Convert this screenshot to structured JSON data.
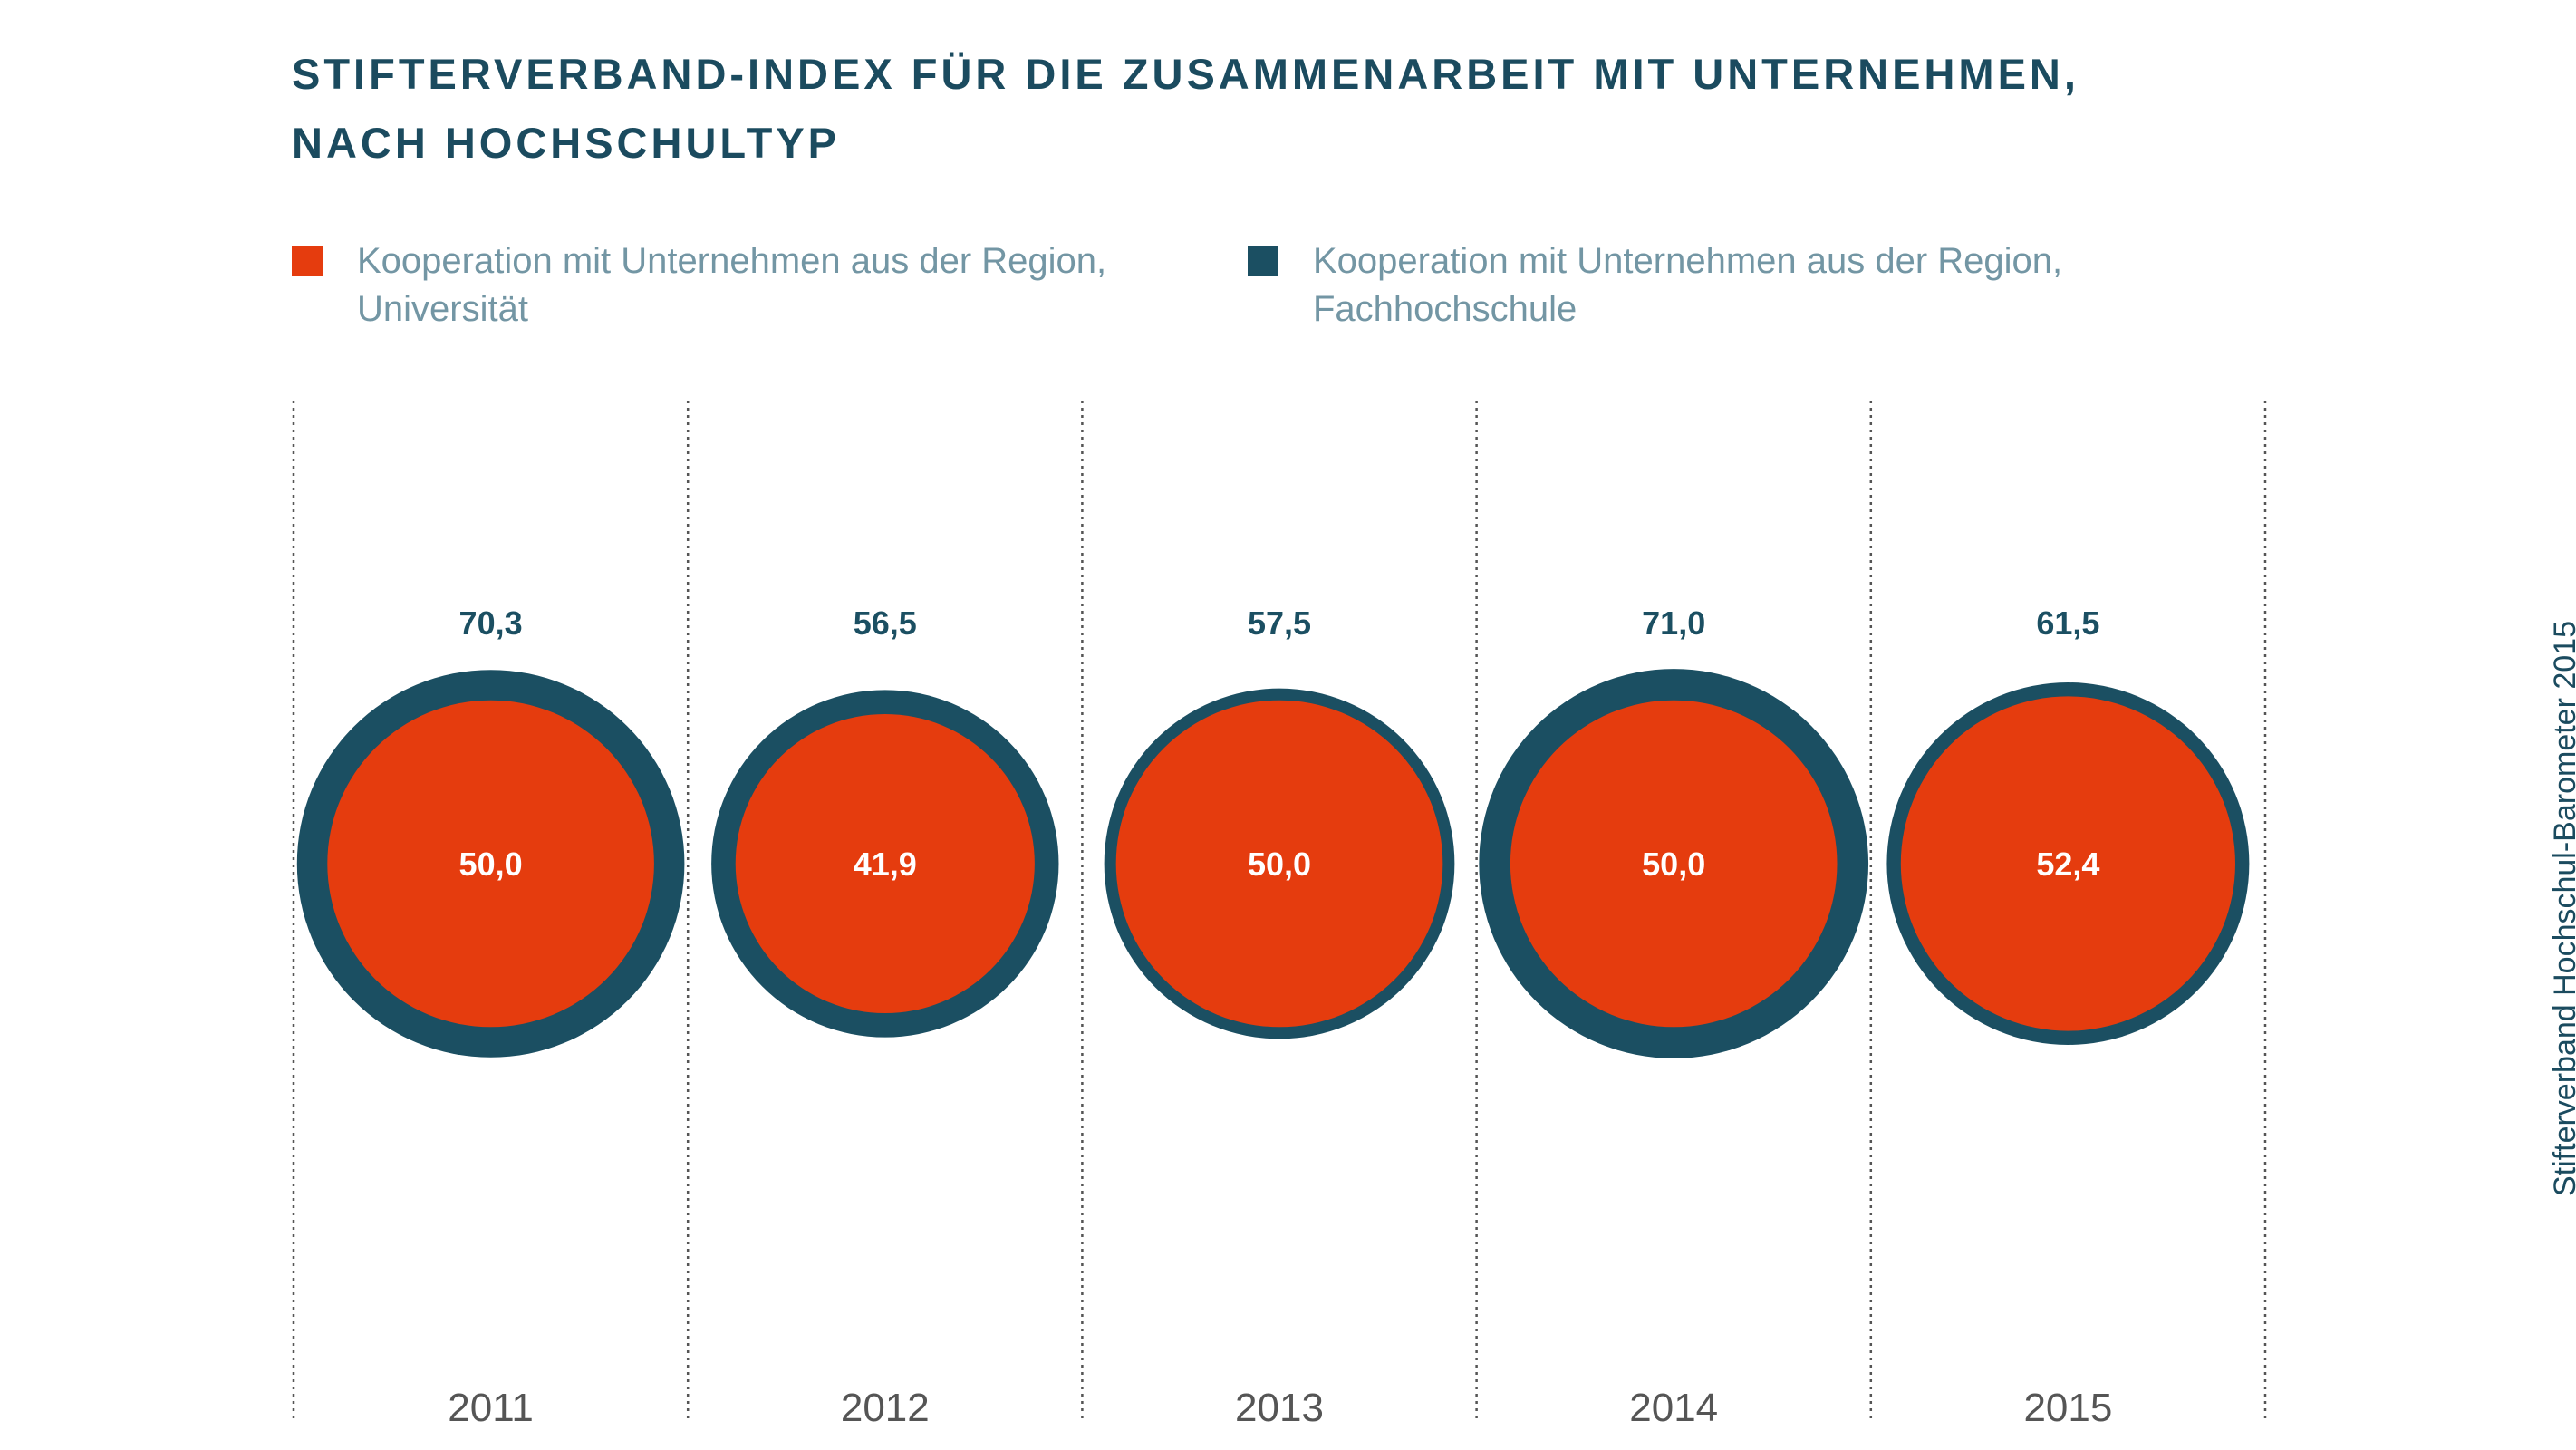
{
  "title_line1": "STIFTERVERBAND-INDEX FÜR DIE ZUSAMMENARBEIT MIT UNTERNEHMEN,",
  "title_line2": "NACH HOCHSCHULTYP",
  "source": "Stifterverband Hochschul-Barometer 2015",
  "colors": {
    "universitaet": "#e53c0e",
    "fachhochschule": "#1b4f62",
    "title": "#1b4b5f",
    "legend_text": "#7396a4",
    "year_text": "#555555",
    "divider": "#555555"
  },
  "chart_data": {
    "type": "proportional-circles",
    "title": "STIFTERVERBAND-INDEX FÜR DIE ZUSAMMENARBEIT MIT UNTERNEHMEN, NACH HOCHSCHULTYP",
    "categories": [
      "2011",
      "2012",
      "2013",
      "2014",
      "2015"
    ],
    "series": [
      {
        "name": "Kooperation mit Unternehmen aus der Region,\nUniversität",
        "color": "#e53c0e",
        "values": [
          "50,0",
          "41,9",
          "50,0",
          "50,0",
          "52,4"
        ]
      },
      {
        "name": "Kooperation mit Unternehmen aus der Region,\nFachhochschule",
        "color": "#1b4f62",
        "values": [
          "70,3",
          "56,5",
          "57,5",
          "71,0",
          "61,5"
        ]
      }
    ],
    "gridlines": "dotted vertical separators",
    "legend_position": "top"
  }
}
